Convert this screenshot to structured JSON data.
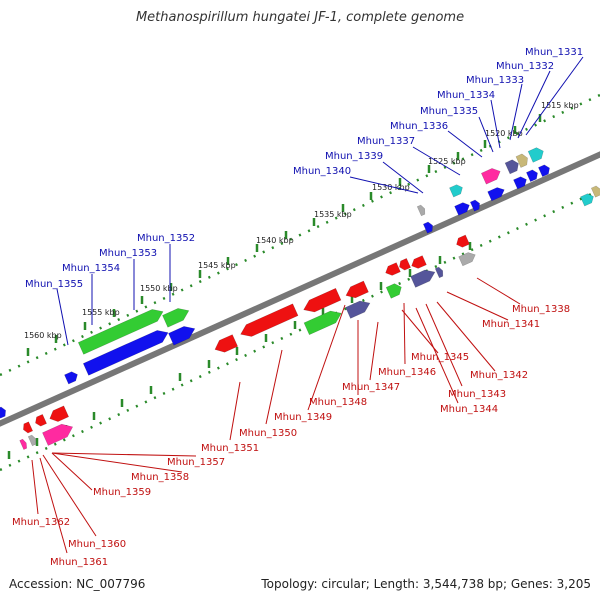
{
  "title": "Methanospirillum hungatei JF-1, complete genome",
  "footer": {
    "accession": "Accession: NC_007796",
    "topology": "Topology: circular; Length: 3,544,738 bp; Genes: 3,205"
  },
  "scale_labels": [
    "1515 kbp",
    "1520 kbp",
    "1525 kbp",
    "1530 kbp",
    "1535 kbp",
    "1540 kbp",
    "1545 kbp",
    "1550 kbp",
    "1555 kbp",
    "1560 kbp"
  ],
  "top_strand_genes": [
    "Mhun_1331",
    "Mhun_1332",
    "Mhun_1333",
    "Mhun_1334",
    "Mhun_1335",
    "Mhun_1336",
    "Mhun_1337",
    "Mhun_1339",
    "Mhun_1340",
    "Mhun_1352",
    "Mhun_1353",
    "Mhun_1354",
    "Mhun_1355"
  ],
  "bottom_strand_genes": [
    "Mhun_1338",
    "Mhun_1341",
    "Mhun_1342",
    "Mhun_1343",
    "Mhun_1344",
    "Mhun_1345",
    "Mhun_1346",
    "Mhun_1347",
    "Mhun_1348",
    "Mhun_1349",
    "Mhun_1350",
    "Mhun_1351",
    "Mhun_1357",
    "Mhun_1358",
    "Mhun_1359",
    "Mhun_1360",
    "Mhun_1361",
    "Mhun_1362"
  ],
  "colors": {
    "backbone": "#777777",
    "scale_tick": "#2a8a2a",
    "top_label": "#1010b0",
    "bottom_label": "#c01010",
    "green": "#33cc33",
    "blue": "#1111ee",
    "red": "#ee1111",
    "pink": "#ff2aa0",
    "purple": "#55559a",
    "gray": "#aaaaaa",
    "cyan": "#22cccc",
    "tan": "#c8b878"
  }
}
